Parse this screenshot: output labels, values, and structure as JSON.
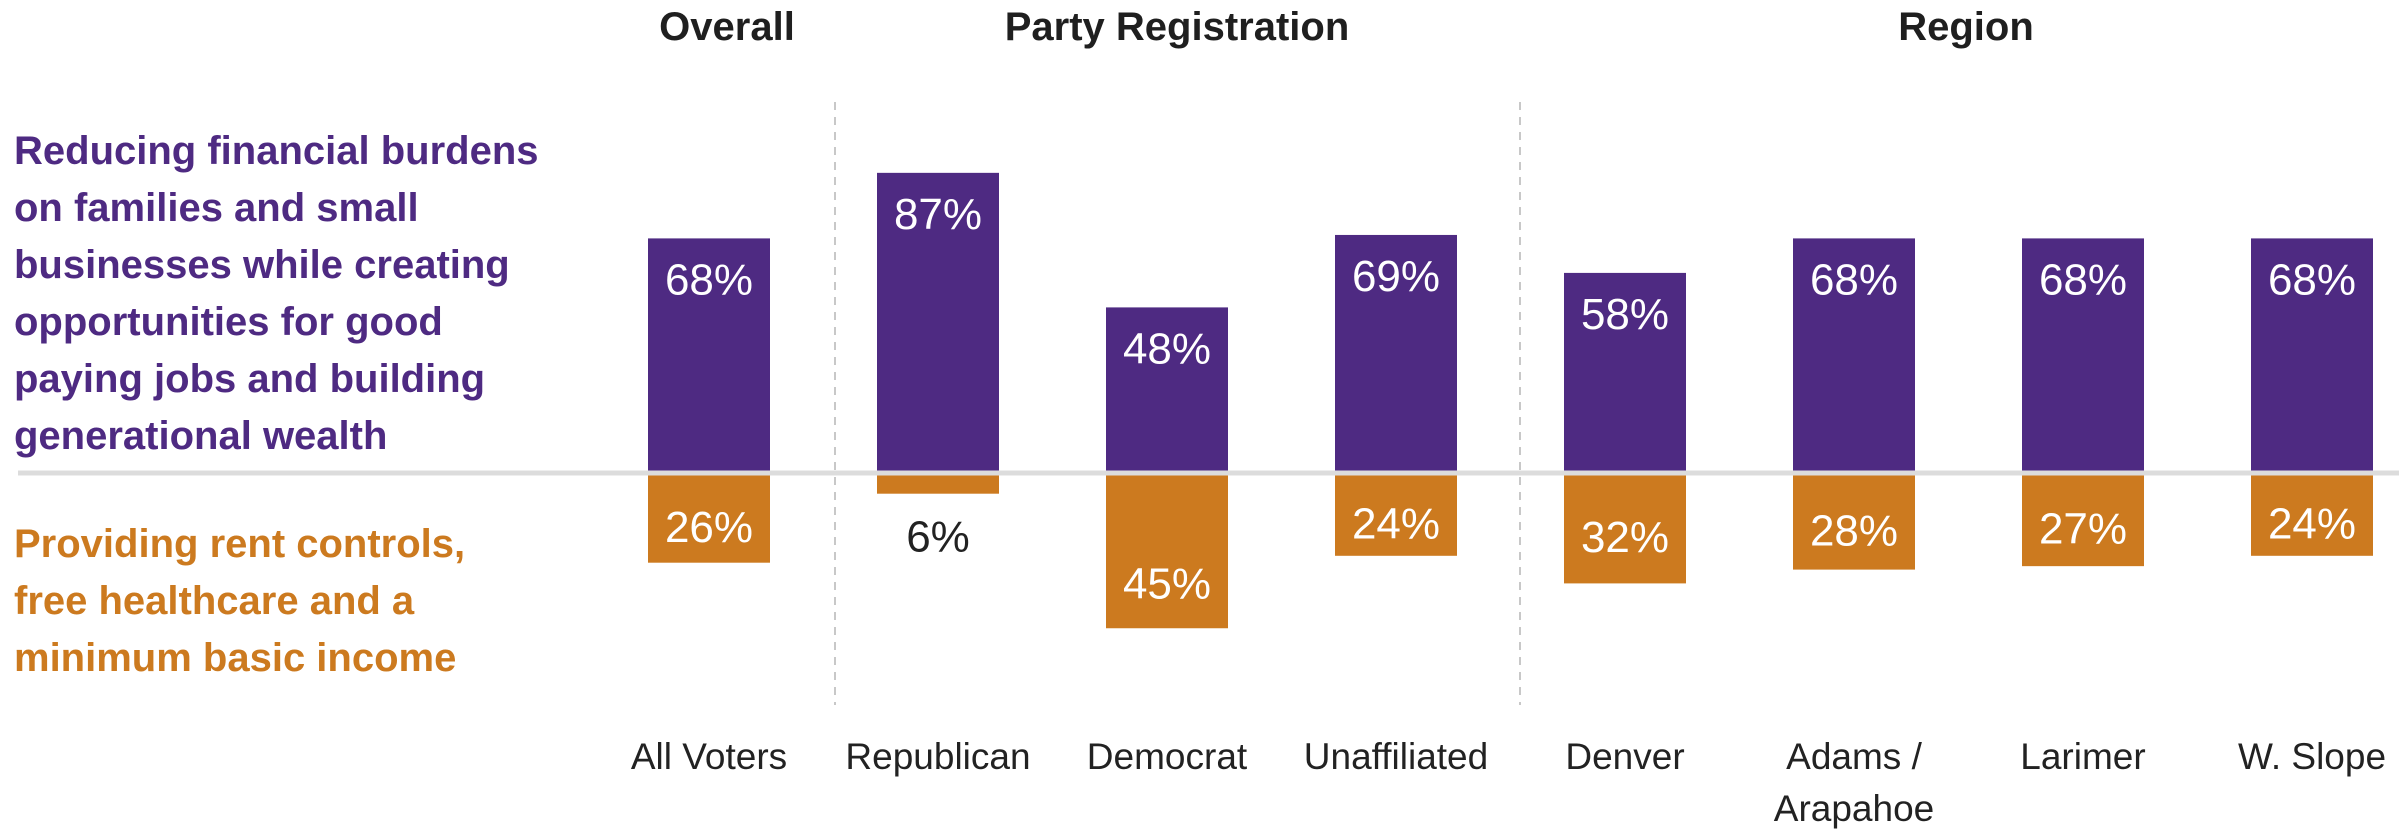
{
  "chart_data": {
    "type": "bar",
    "groups": [
      {
        "title": "Overall",
        "categories": [
          "All Voters"
        ]
      },
      {
        "title": "Party Registration",
        "categories": [
          "Republican",
          "Democrat",
          "Unaffiliated"
        ]
      },
      {
        "title": "Region",
        "categories": [
          "Denver",
          "Adams / Arapahoe",
          "Larimer",
          "W. Slope"
        ]
      }
    ],
    "categories": [
      "All Voters",
      "Republican",
      "Democrat",
      "Unaffiliated",
      "Denver",
      "Adams / Arapahoe",
      "Larimer",
      "W. Slope"
    ],
    "series": [
      {
        "name": "Reducing financial burdens on families and small businesses while creating opportunities for good paying jobs and building generational wealth",
        "name_lines": [
          "Reducing financial burdens",
          "on families and small",
          "businesses while creating",
          "opportunities for good",
          "paying jobs and building",
          "generational wealth"
        ],
        "color": "#4e2a82",
        "direction": "up",
        "values": [
          68,
          87,
          48,
          69,
          58,
          68,
          68,
          68
        ],
        "labels": [
          "68%",
          "87%",
          "48%",
          "69%",
          "58%",
          "68%",
          "68%",
          "68%"
        ]
      },
      {
        "name": "Providing rent controls, free healthcare and a minimum basic income",
        "name_lines": [
          "Providing rent controls,",
          "free healthcare and a",
          "minimum basic income"
        ],
        "color": "#cc7a1f",
        "direction": "down",
        "values": [
          26,
          6,
          45,
          24,
          32,
          28,
          27,
          24
        ],
        "labels": [
          "26%",
          "6%",
          "45%",
          "24%",
          "32%",
          "28%",
          "27%",
          "24%"
        ]
      }
    ],
    "ylim": [
      0,
      100
    ],
    "grid": false
  }
}
